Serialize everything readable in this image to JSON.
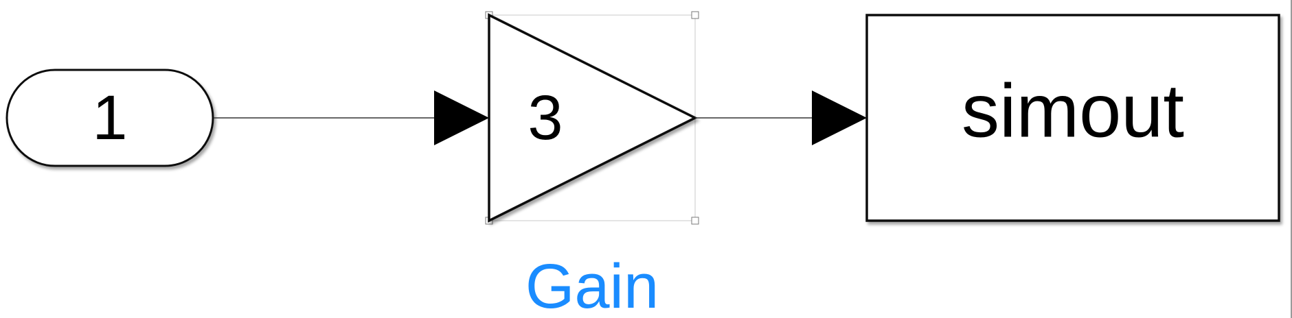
{
  "diagram": {
    "constant_block": {
      "value": "1"
    },
    "gain_block": {
      "value": "3",
      "name": "Gain",
      "name_color": "#1a8cff"
    },
    "to_workspace_block": {
      "variable": "simout"
    }
  }
}
